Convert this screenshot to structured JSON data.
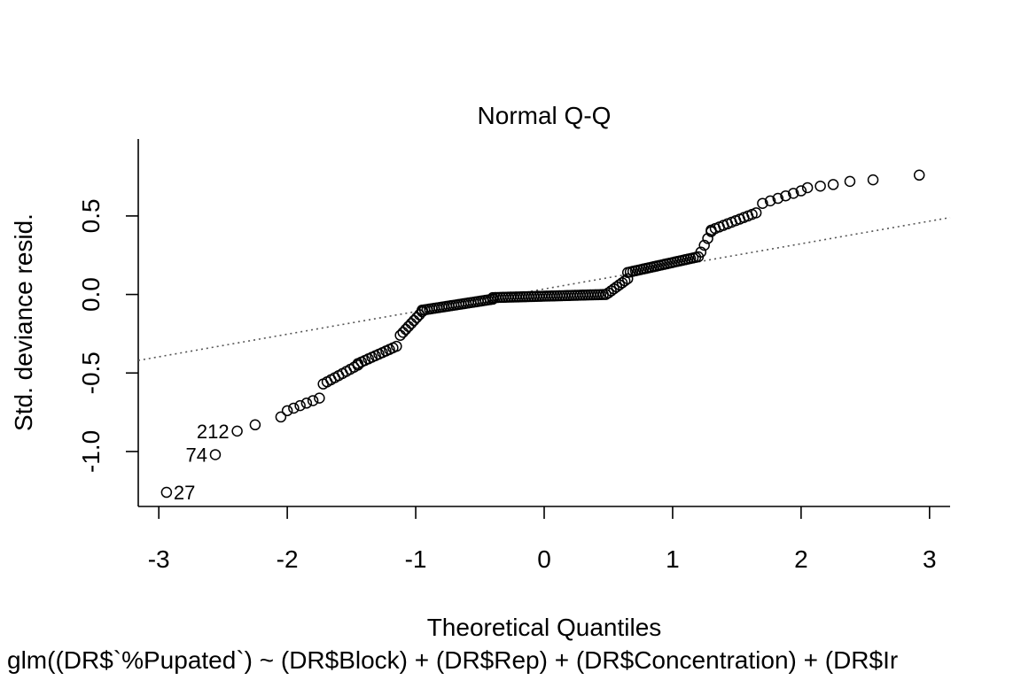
{
  "chart_data": {
    "type": "scatter",
    "title": "Normal Q-Q",
    "xlabel": "Theoretical Quantiles",
    "ylabel": "Std. deviance resid.",
    "subtitle": "glm((DR$`%Pupated`) ~ (DR$Block) + (DR$Rep) + (DR$Concentration) + (DR$Ir",
    "xlim": [
      -3.16,
      3.16
    ],
    "ylim": [
      -1.35,
      0.99
    ],
    "x_ticks": [
      -3,
      -2,
      -1,
      0,
      1,
      2,
      3
    ],
    "y_ticks": [
      -1.0,
      -0.5,
      0.0,
      0.5
    ],
    "y_tick_labels": [
      "-1.0",
      "-0.5",
      "0.0",
      "0.5"
    ],
    "reference_line": {
      "x1": -3.16,
      "y1": -0.42,
      "x2": 3.16,
      "y2": 0.49,
      "style": "dotted"
    },
    "labeled_points": [
      {
        "label": "27",
        "x": -2.94,
        "y": -1.26,
        "side": "right"
      },
      {
        "label": "74",
        "x": -2.56,
        "y": -1.02,
        "side": "left"
      },
      {
        "label": "212",
        "x": -2.39,
        "y": -0.87,
        "side": "left"
      }
    ],
    "segments": [
      {
        "x0": -2.25,
        "x1": -2.05,
        "y0": -0.83,
        "y1": -0.78,
        "n": 2
      },
      {
        "x0": -2.0,
        "x1": -1.75,
        "y0": -0.74,
        "y1": -0.66,
        "n": 6
      },
      {
        "x0": -1.72,
        "x1": -1.45,
        "y0": -0.57,
        "y1": -0.45,
        "n": 10
      },
      {
        "x0": -1.45,
        "x1": -1.15,
        "y0": -0.44,
        "y1": -0.33,
        "n": 12
      },
      {
        "x0": -1.12,
        "x1": -0.95,
        "y0": -0.26,
        "y1": -0.11,
        "n": 9
      },
      {
        "x0": -0.95,
        "x1": -0.4,
        "y0": -0.1,
        "y1": -0.03,
        "n": 30
      },
      {
        "x0": -0.4,
        "x1": 0.48,
        "y0": -0.02,
        "y1": 0.0,
        "n": 45
      },
      {
        "x0": 0.5,
        "x1": 0.65,
        "y0": 0.01,
        "y1": 0.1,
        "n": 8
      },
      {
        "x0": 0.65,
        "x1": 1.2,
        "y0": 0.14,
        "y1": 0.24,
        "n": 28
      },
      {
        "x0": 1.22,
        "x1": 1.3,
        "y0": 0.27,
        "y1": 0.4,
        "n": 4
      },
      {
        "x0": 1.3,
        "x1": 1.65,
        "y0": 0.41,
        "y1": 0.52,
        "n": 12
      },
      {
        "x0": 1.7,
        "x1": 2.0,
        "y0": 0.58,
        "y1": 0.66,
        "n": 6
      },
      {
        "x0": 2.05,
        "x1": 2.25,
        "y0": 0.68,
        "y1": 0.7,
        "n": 3
      }
    ],
    "points": [
      {
        "x": 2.38,
        "y": 0.72
      },
      {
        "x": 2.56,
        "y": 0.73
      },
      {
        "x": 2.92,
        "y": 0.76
      }
    ],
    "grid": false,
    "legend": "none"
  }
}
